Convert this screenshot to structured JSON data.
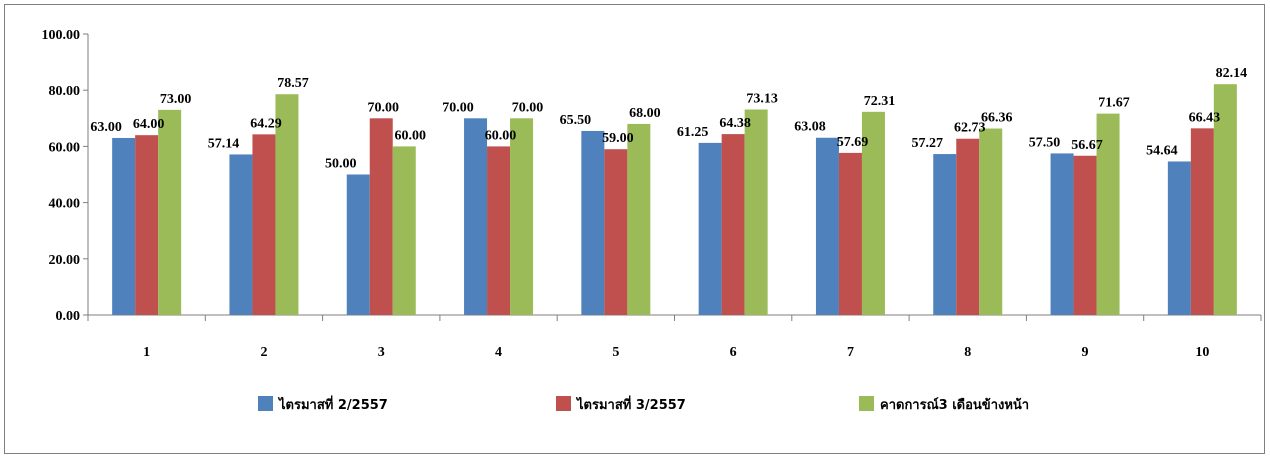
{
  "chart_data": {
    "type": "bar",
    "categories": [
      "1",
      "2",
      "3",
      "4",
      "5",
      "6",
      "7",
      "8",
      "9",
      "10"
    ],
    "series": [
      {
        "name": "ไตรมาสที่ 2/2557",
        "color": "#4f81bd",
        "values": [
          63.0,
          57.14,
          50.0,
          70.0,
          65.5,
          61.25,
          63.08,
          57.27,
          57.5,
          54.64
        ]
      },
      {
        "name": "ไตรมาสที่ 3/2557",
        "color": "#c0504d",
        "values": [
          64.0,
          64.29,
          70.0,
          60.0,
          59.0,
          64.38,
          57.69,
          62.73,
          56.67,
          66.43
        ]
      },
      {
        "name": "คาดการณ์3 เดือนข้างหน้า",
        "color": "#9bbb59",
        "values": [
          73.0,
          78.57,
          60.0,
          70.0,
          68.0,
          73.13,
          72.31,
          66.36,
          71.67,
          82.14
        ]
      }
    ],
    "ylim": [
      0,
      100
    ],
    "yticks": [
      "0.00",
      "20.00",
      "40.00",
      "60.00",
      "80.00",
      "100.00"
    ],
    "grid": false,
    "legend_position": "bottom",
    "title": "",
    "xlabel": "",
    "ylabel": ""
  }
}
